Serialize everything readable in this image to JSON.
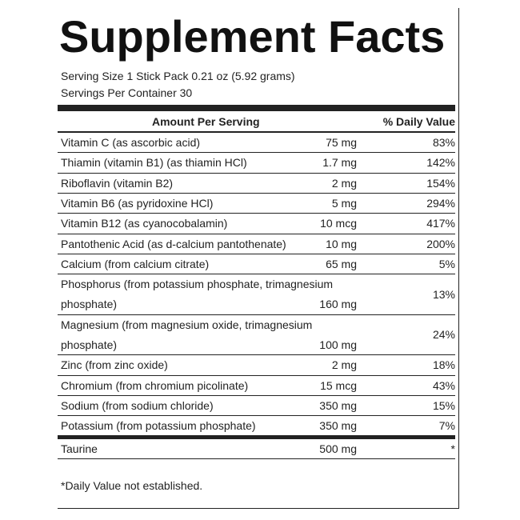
{
  "header": {
    "title": "Supplement Facts",
    "serving_size": "Serving Size 1 Stick Pack 0.21 oz (5.92 grams)",
    "servings_per_container": "Servings Per Container 30"
  },
  "table": {
    "columns": [
      "Amount Per Serving",
      "% Daily Value"
    ],
    "rows": [
      {
        "name": [
          "Vitamin C (as ascorbic acid)"
        ],
        "amount": "75 mg",
        "dv": "83%"
      },
      {
        "name": [
          "Thiamin (vitamin B1) (as thiamin HCl)"
        ],
        "amount": "1.7 mg",
        "dv": "142%"
      },
      {
        "name": [
          "Riboflavin (vitamin B2)"
        ],
        "amount": "2 mg",
        "dv": "154%"
      },
      {
        "name": [
          "Vitamin B6 (as pyridoxine HCl)"
        ],
        "amount": "5 mg",
        "dv": "294%"
      },
      {
        "name": [
          "Vitamin B12 (as cyanocobalamin)"
        ],
        "amount": "10 mcg",
        "dv": "417%"
      },
      {
        "name": [
          "Pantothenic Acid (as d-calcium pantothenate)"
        ],
        "amount": "10 mg",
        "dv": "200%"
      },
      {
        "name": [
          "Calcium (from calcium citrate)"
        ],
        "amount": "65 mg",
        "dv": "5%"
      },
      {
        "name": [
          "Phosphorus (from potassium phosphate, trimagnesium",
          "phosphate)"
        ],
        "amount": "160 mg",
        "dv": "13%"
      },
      {
        "name": [
          "Magnesium (from magnesium oxide, trimagnesium",
          "phosphate)"
        ],
        "amount": "100 mg",
        "dv": "24%"
      },
      {
        "name": [
          "Zinc (from zinc oxide)"
        ],
        "amount": "2 mg",
        "dv": "18%"
      },
      {
        "name": [
          "Chromium (from chromium picolinate)"
        ],
        "amount": "15 mcg",
        "dv": "43%"
      },
      {
        "name": [
          "Sodium (from sodium chloride)"
        ],
        "amount": "350 mg",
        "dv": "15%"
      },
      {
        "name": [
          "Potassium (from potassium phosphate)"
        ],
        "amount": "350 mg",
        "dv": "7%"
      }
    ],
    "extra_rows": [
      {
        "name": [
          "Taurine"
        ],
        "amount": "500 mg",
        "dv": "*"
      }
    ]
  },
  "footnote": "*Daily Value not established."
}
